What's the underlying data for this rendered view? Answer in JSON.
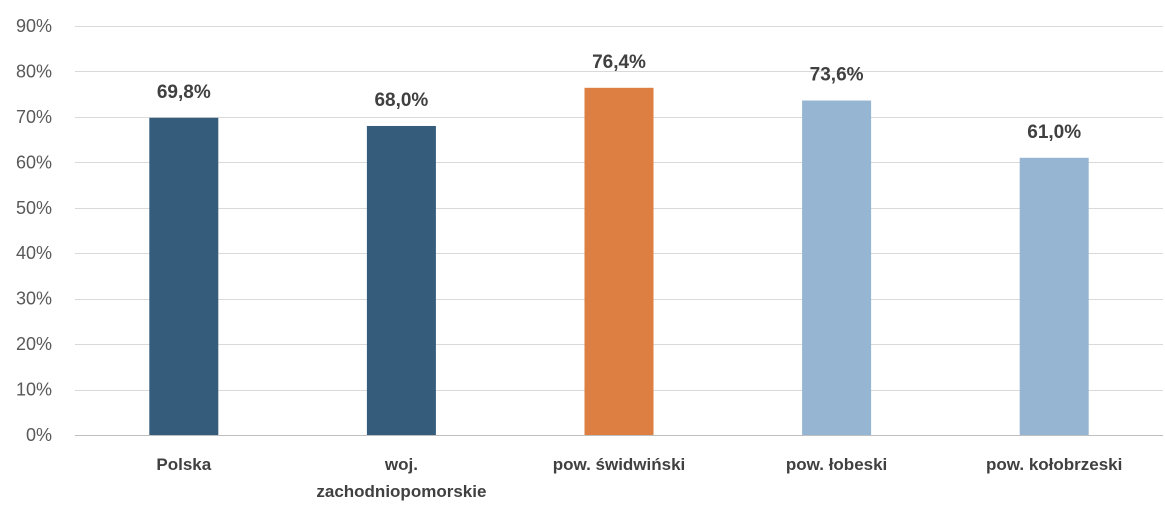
{
  "chart_data": {
    "type": "bar",
    "title": "",
    "xlabel": "",
    "ylabel": "",
    "categories": [
      [
        "Polska"
      ],
      [
        "woj.",
        "zachodniopomorskie"
      ],
      [
        "pow. świdwiński"
      ],
      [
        "pow. łobeski"
      ],
      [
        "pow. kołobrzeski"
      ]
    ],
    "values": [
      69.8,
      68.0,
      76.4,
      73.6,
      61.0
    ],
    "value_labels": [
      "69,8%",
      "68,0%",
      "76,4%",
      "73,6%",
      "61,0%"
    ],
    "colors": [
      "#355d7b",
      "#355d7b",
      "#dd7e43",
      "#95b5d3",
      "#95b5d3"
    ],
    "ylim": [
      0,
      90
    ],
    "yticks": [
      0,
      10,
      20,
      30,
      40,
      50,
      60,
      70,
      80,
      90
    ],
    "ytick_labels": [
      "0%",
      "10%",
      "20%",
      "30%",
      "40%",
      "50%",
      "60%",
      "70%",
      "80%",
      "90%"
    ],
    "grid": true,
    "legend": "none"
  }
}
